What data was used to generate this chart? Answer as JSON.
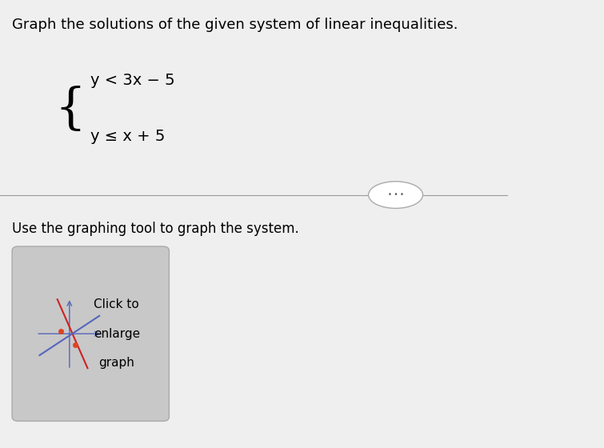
{
  "title": "Graph the solutions of the given system of linear inequalities.",
  "ineq1": "y < 3x − 5",
  "ineq2": "y ≤ x + 5",
  "divider_text": "Use the graphing tool to graph the system.",
  "button_text_line1": "Click to",
  "button_text_line2": "enlarge",
  "button_text_line3": "graph",
  "bg_color": "#efefef",
  "button_bg": "#c8c8c8",
  "title_fontsize": 13,
  "body_fontsize": 12,
  "ineq_fontsize": 14,
  "line_blue": "#5566bb",
  "line_red": "#cc2222",
  "dot_color": "#dd4422"
}
